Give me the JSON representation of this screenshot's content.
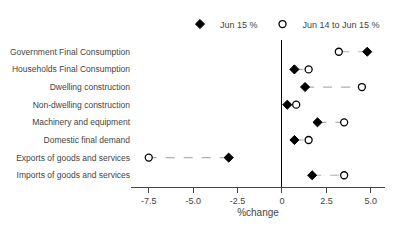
{
  "chart_data": {
    "type": "dumbbell",
    "categories": [
      "Government Final Consumption",
      "Households Final Consumption",
      "Dwelling construction",
      "Non-dwelling construction",
      "Machinery and equipment",
      "Domestic final demand",
      "Exports of goods and services",
      "Imports of goods and services"
    ],
    "series": [
      {
        "name": "Jun 15 %",
        "color": "#000000",
        "marker": "diamond",
        "values": [
          4.8,
          0.7,
          1.3,
          0.3,
          2.0,
          0.7,
          -3.0,
          1.7
        ]
      },
      {
        "name": "Jun 14 to Jun 15 %",
        "color": "#000000",
        "marker": "open circle",
        "values": [
          3.2,
          1.5,
          4.5,
          0.8,
          3.5,
          1.5,
          -7.5,
          3.5
        ]
      }
    ],
    "color": "#b0b0b0",
    "line_style": "dashed",
    "xlabel": "%change",
    "xlim": [
      -8.5,
      5.8
    ],
    "xticks": [
      -7.5,
      {
        "value": -5.0,
        "label": "-5.0"
      },
      -2.5,
      0,
      2.5,
      {
        "value": 5.0,
        "label": "5.0"
      }
    ],
    "legend": "top",
    "grid": false
  }
}
